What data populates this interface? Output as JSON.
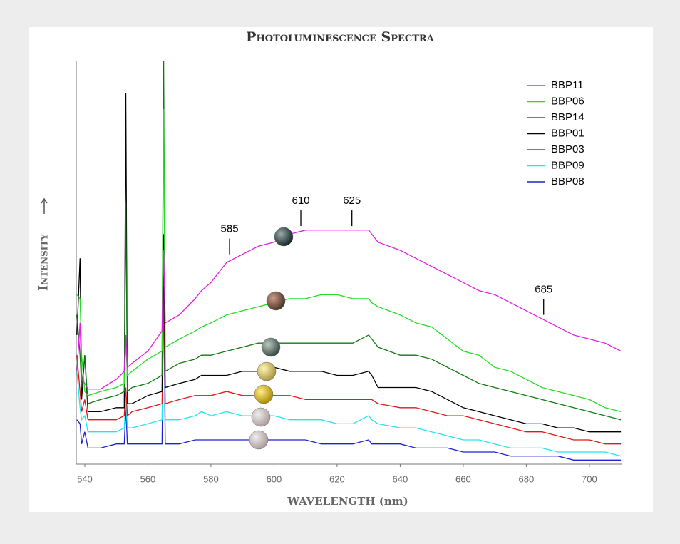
{
  "chart_data": {
    "type": "line",
    "title": "Photoluminescence Spectra",
    "x_label": "WAVELENGTH (nm)",
    "y_label": "Intensity",
    "xlim": [
      537.3,
      710.2
    ],
    "xticks": [
      540,
      560,
      580,
      600,
      620,
      640,
      660,
      680,
      700
    ],
    "ylim": [
      0,
      100
    ],
    "yticks": [],
    "legend": "upper right",
    "x": [
      537.5,
      538.5,
      539,
      540,
      541,
      545,
      550,
      552.5,
      553,
      553.5,
      555,
      560,
      564.5,
      565,
      565.5,
      570,
      575,
      577,
      580,
      585,
      590,
      595,
      600,
      605,
      610,
      615,
      620,
      625,
      630,
      631,
      633,
      640,
      645,
      650,
      655,
      660,
      665,
      670,
      675,
      680,
      685,
      690,
      695,
      700,
      705,
      710
    ],
    "series": [
      {
        "name": "BBP11",
        "color": "#e21ee2",
        "values": [
          23,
          35,
          21,
          20,
          18.6,
          18.6,
          21,
          23,
          32,
          24,
          25,
          28,
          33,
          53,
          35,
          37,
          41,
          43,
          45,
          50,
          52,
          54,
          55,
          57,
          58,
          58,
          58,
          58,
          58,
          57,
          55,
          53,
          51,
          49,
          47,
          45,
          43,
          42,
          40,
          38,
          36,
          34,
          32,
          31,
          30,
          28
        ]
      },
      {
        "name": "BBP06",
        "color": "#22dd22",
        "values": [
          42,
          41,
          27,
          18,
          17,
          18,
          19,
          20,
          30,
          22,
          23,
          26,
          28,
          88,
          29,
          31,
          33,
          34,
          35,
          37,
          38,
          39,
          40,
          41,
          41,
          42,
          42,
          41,
          41,
          40,
          39,
          37,
          35,
          34,
          31,
          28,
          27,
          24,
          23,
          21,
          19,
          18,
          17,
          16,
          14,
          13
        ]
      },
      {
        "name": "BBP14",
        "color": "#127a12",
        "values": [
          37,
          27,
          19,
          27,
          15,
          16,
          17,
          18,
          65,
          18,
          19,
          20,
          22,
          100,
          23,
          25,
          26,
          27,
          27,
          28,
          29,
          30,
          30,
          30,
          30,
          30,
          30,
          30,
          32,
          31,
          29,
          27,
          27,
          26,
          24,
          22,
          20,
          19,
          18,
          17,
          16,
          15,
          14,
          13,
          12,
          11
        ]
      },
      {
        "name": "BBP01",
        "color": "#000000",
        "values": [
          32,
          51,
          16,
          27,
          13,
          13,
          14,
          14,
          92,
          15,
          15,
          17,
          18,
          57,
          19,
          20,
          21,
          22,
          22,
          22,
          23,
          23,
          24,
          23,
          23,
          23,
          22,
          22,
          23,
          22,
          19,
          19,
          19,
          18,
          16,
          14,
          13,
          12,
          11,
          10,
          10,
          9,
          9,
          8,
          8,
          8
        ]
      },
      {
        "name": "BBP03",
        "color": "#e01818",
        "values": [
          27,
          18,
          13,
          16,
          11,
          11,
          11,
          12,
          19,
          12,
          13,
          14,
          15,
          44,
          15,
          16,
          17,
          17,
          17,
          18,
          17,
          17,
          17,
          17,
          16,
          16,
          16,
          16,
          16,
          16,
          15,
          14,
          14,
          13,
          12,
          12,
          11,
          10,
          9,
          8,
          8,
          7,
          6,
          6,
          5,
          5
        ]
      },
      {
        "name": "BBP09",
        "color": "#1ee6ee",
        "values": [
          23,
          14,
          11,
          12,
          8,
          8,
          8,
          9,
          16,
          9,
          9,
          10,
          11,
          48,
          11,
          11,
          12,
          13,
          12,
          13,
          12,
          12,
          12,
          11,
          11,
          11,
          10,
          10,
          12,
          11,
          10,
          9,
          9,
          8,
          7,
          6,
          6,
          5,
          4,
          4,
          4,
          3,
          3,
          3,
          3,
          2
        ]
      },
      {
        "name": "BBP08",
        "color": "#1c22d0",
        "values": [
          11,
          10,
          5,
          8,
          4,
          4,
          5,
          5,
          14,
          5,
          5,
          5,
          5,
          44,
          5,
          5,
          6,
          6,
          6,
          6,
          6,
          6,
          6,
          6,
          6,
          5,
          5,
          5,
          6,
          5,
          5,
          5,
          4,
          4,
          4,
          3,
          3,
          3,
          2,
          2,
          2,
          2,
          1,
          1,
          1,
          1
        ]
      }
    ],
    "annotations": [
      {
        "text": "585",
        "x": 585.9,
        "y": 52
      },
      {
        "text": "610",
        "x": 608.5,
        "y": 59
      },
      {
        "text": "625",
        "x": 624.7,
        "y": 59
      },
      {
        "text": "685",
        "x": 685.5,
        "y": 37
      }
    ]
  }
}
